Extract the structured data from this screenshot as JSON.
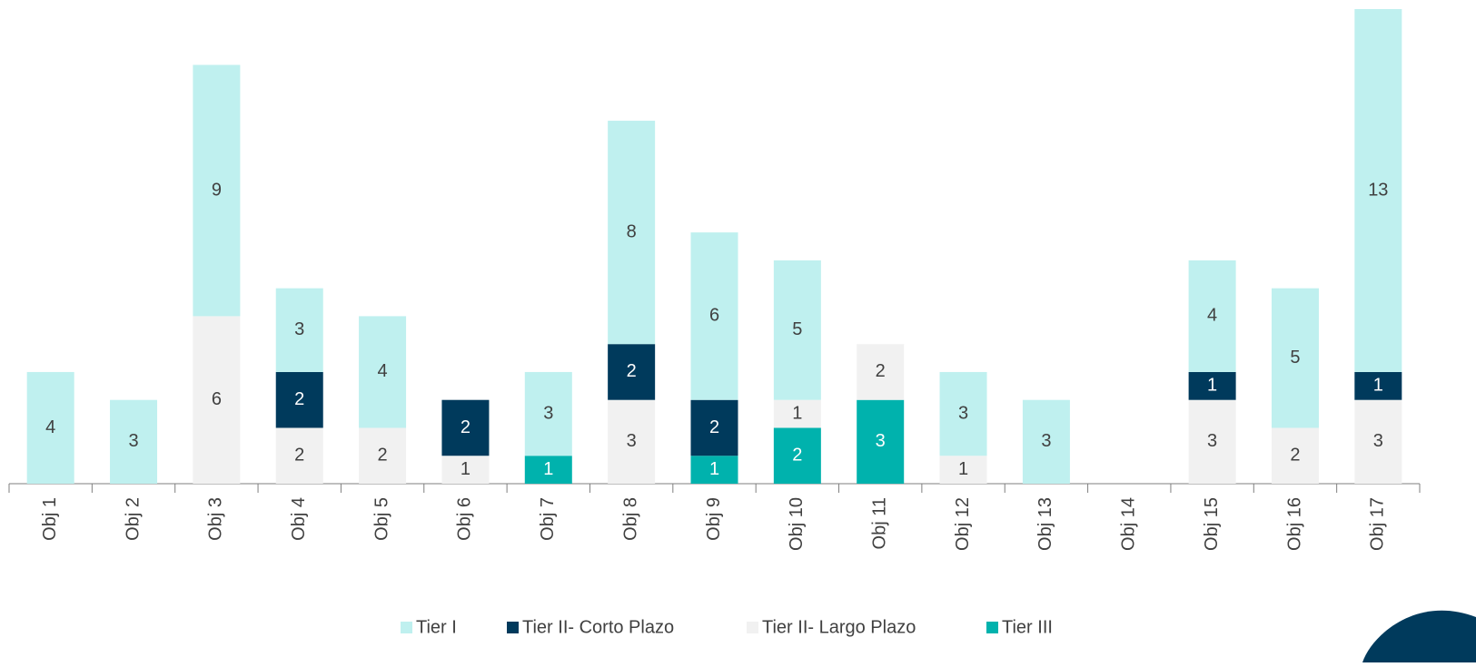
{
  "chart_data": {
    "type": "stacked_bar",
    "categories": [
      "Obj 1",
      "Obj 2",
      "Obj 3",
      "Obj 4",
      "Obj 5",
      "Obj 6",
      "Obj 7",
      "Obj 8",
      "Obj 9",
      "Obj 10",
      "Obj 11",
      "Obj 12",
      "Obj 13",
      "Obj 14",
      "Obj 15",
      "Obj 16",
      "Obj 17"
    ],
    "series": [
      {
        "name": "Tier I",
        "color": "#bff0ef",
        "values": [
          4,
          3,
          9,
          3,
          4,
          null,
          3,
          8,
          6,
          5,
          null,
          3,
          3,
          null,
          4,
          5,
          13
        ]
      },
      {
        "name": "Tier II- Corto Plazo",
        "color": "#003a5c",
        "values": [
          null,
          null,
          null,
          2,
          null,
          2,
          null,
          2,
          2,
          null,
          null,
          null,
          null,
          null,
          1,
          null,
          1
        ]
      },
      {
        "name": "Tier II- Largo Plazo",
        "color": "#f1f1f1",
        "values": [
          null,
          null,
          6,
          2,
          2,
          1,
          null,
          3,
          null,
          1,
          2,
          1,
          null,
          null,
          3,
          2,
          3
        ]
      },
      {
        "name": "Tier III",
        "color": "#00b2ad",
        "values": [
          null,
          null,
          null,
          null,
          null,
          null,
          1,
          null,
          1,
          2,
          3,
          null,
          null,
          null,
          null,
          null,
          null
        ]
      }
    ],
    "legend": "bottom"
  }
}
